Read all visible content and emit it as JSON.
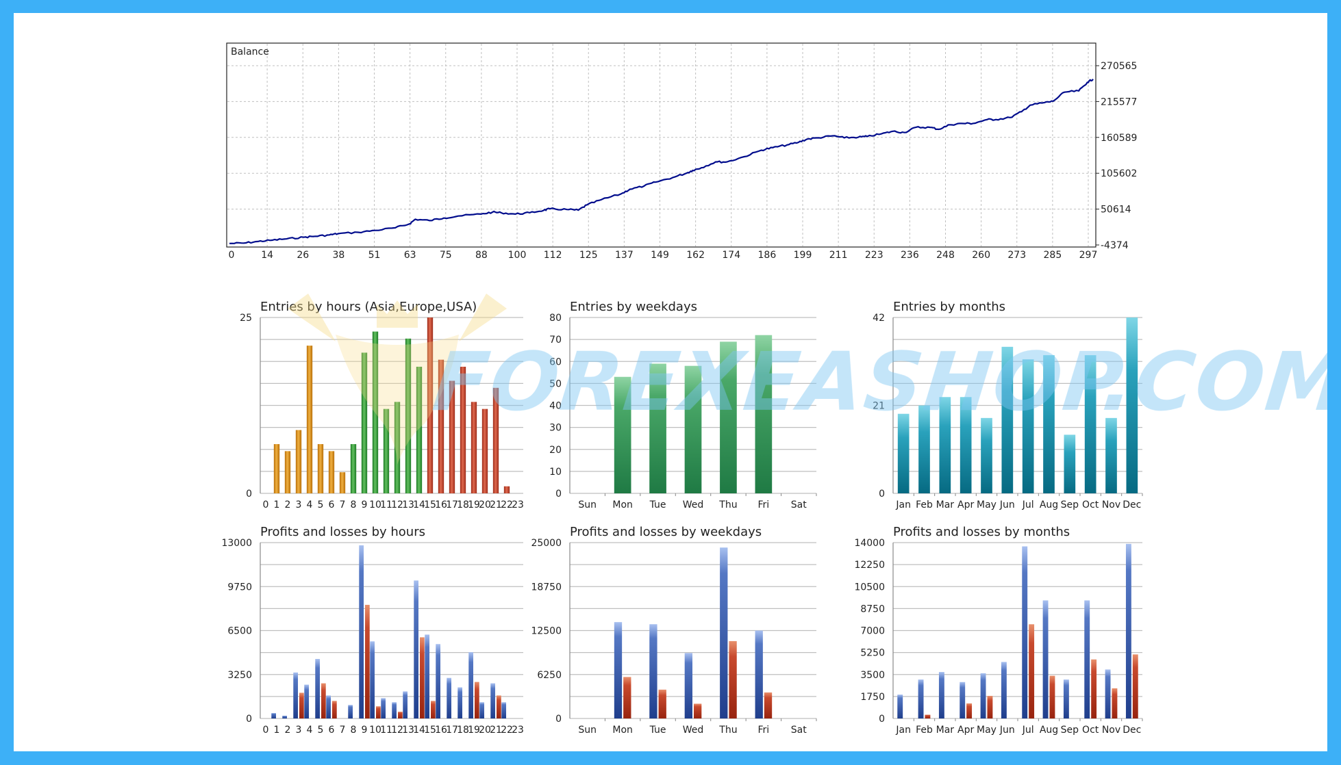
{
  "colors": {
    "frame": "#3db0f7",
    "balance_line": "#000c8c",
    "grid": "#bfbfbf",
    "asia": "#d68a16",
    "europe": "#2e9a3a",
    "usa": "#bf3b28",
    "weekday_green": "#2f9a5a",
    "month_teal": "#0e86a0",
    "profit_blue": "#2f58a8",
    "loss_red": "#bf3b28",
    "watermark": "#7ec8f4"
  },
  "watermark": {
    "text": "FOREXEASHOP.COM"
  },
  "chart_data": [
    {
      "id": "balance",
      "type": "line",
      "title": "Balance",
      "x_ticks": [
        "0",
        "14",
        "26",
        "38",
        "51",
        "63",
        "75",
        "88",
        "100",
        "112",
        "125",
        "137",
        "149",
        "162",
        "174",
        "186",
        "199",
        "211",
        "223",
        "236",
        "248",
        "260",
        "273",
        "285",
        "297"
      ],
      "y_ticks": [
        "270565",
        "215577",
        "160589",
        "105602",
        "50614",
        "-4374"
      ],
      "xlim": [
        0,
        302
      ],
      "ylim": [
        -4374,
        270565
      ],
      "grid": true,
      "series": [
        {
          "x": [
            0,
            5,
            10,
            15,
            20,
            26,
            30,
            35,
            38,
            45,
            51,
            58,
            63,
            65,
            70,
            75,
            80,
            88,
            92,
            95,
            100,
            105,
            110,
            112,
            118,
            122,
            125,
            130,
            137,
            140,
            145,
            149,
            155,
            160,
            162,
            165,
            170,
            174,
            180,
            186,
            190,
            195,
            199,
            202,
            206,
            211,
            215,
            220,
            223,
            228,
            232,
            236,
            240,
            245,
            248,
            252,
            256,
            260,
            265,
            268,
            273,
            277,
            280,
            285,
            288,
            292,
            297,
            300,
            302
          ],
          "y": [
            -2100,
            -1500,
            1000,
            3000,
            5000,
            7500,
            9000,
            11000,
            13000,
            15000,
            18000,
            22000,
            28000,
            35000,
            33000,
            37000,
            40000,
            43000,
            46000,
            45000,
            43000,
            45000,
            49000,
            51000,
            50000,
            49000,
            57000,
            65000,
            74000,
            81000,
            86000,
            92000,
            99000,
            106000,
            110000,
            114000,
            123000,
            123000,
            131000,
            141000,
            145000,
            149000,
            153000,
            158000,
            160000,
            163000,
            160000,
            161000,
            162000,
            166000,
            170000,
            168000,
            176000,
            176000,
            173000,
            180000,
            182000,
            182000,
            188000,
            188000,
            191000,
            200000,
            210000,
            214000,
            216000,
            230000,
            232000,
            245000,
            250000
          ]
        }
      ]
    },
    {
      "id": "entries_hours",
      "type": "bar",
      "title": "Entries by hours (Asia,Europe,USA)",
      "categories": [
        "0",
        "1",
        "2",
        "3",
        "4",
        "5",
        "6",
        "7",
        "8",
        "9",
        "10",
        "11",
        "12",
        "13",
        "14",
        "15",
        "16",
        "17",
        "18",
        "19",
        "20",
        "21",
        "22",
        "23"
      ],
      "values": [
        0,
        7,
        6,
        9,
        21,
        7,
        6,
        3,
        7,
        20,
        23,
        12,
        13,
        22,
        18,
        25,
        19,
        16,
        18,
        13,
        12,
        15,
        1,
        0
      ],
      "groups": [
        "asia",
        "asia",
        "asia",
        "asia",
        "asia",
        "asia",
        "asia",
        "asia",
        "europe",
        "europe",
        "europe",
        "europe",
        "europe",
        "europe",
        "europe",
        "usa",
        "usa",
        "usa",
        "usa",
        "usa",
        "usa",
        "usa",
        "usa",
        "usa"
      ],
      "y_ticks": [
        "25",
        "0"
      ],
      "ylim": [
        0,
        25
      ],
      "grid_lines": 8
    },
    {
      "id": "entries_weekdays",
      "type": "bar",
      "title": "Entries by weekdays",
      "categories": [
        "Sun",
        "Mon",
        "Tue",
        "Wed",
        "Thu",
        "Fri",
        "Sat"
      ],
      "values": [
        0,
        53,
        59,
        58,
        69,
        72,
        0
      ],
      "y_ticks": [
        "80",
        "70",
        "60",
        "50",
        "40",
        "30",
        "20",
        "10",
        "0"
      ],
      "ylim": [
        0,
        80
      ],
      "grid_lines": 8
    },
    {
      "id": "entries_months",
      "type": "bar",
      "title": "Entries by months",
      "categories": [
        "Jan",
        "Feb",
        "Mar",
        "Apr",
        "May",
        "Jun",
        "Jul",
        "Aug",
        "Sep",
        "Oct",
        "Nov",
        "Dec"
      ],
      "values": [
        19,
        21,
        23,
        23,
        18,
        35,
        32,
        33,
        14,
        33,
        18,
        42
      ],
      "y_ticks": [
        "42",
        "21",
        "0"
      ],
      "ylim": [
        0,
        42
      ],
      "grid_lines": 8
    },
    {
      "id": "pl_hours",
      "type": "bar",
      "title": "Profits and losses by hours",
      "categories": [
        "0",
        "1",
        "2",
        "3",
        "4",
        "5",
        "6",
        "7",
        "8",
        "9",
        "10",
        "11",
        "12",
        "13",
        "14",
        "15",
        "16",
        "17",
        "18",
        "19",
        "20",
        "21",
        "22",
        "23"
      ],
      "series": [
        {
          "name": "profit",
          "values": [
            0,
            400,
            200,
            3400,
            2500,
            4400,
            1700,
            0,
            1000,
            12800,
            5700,
            1500,
            1200,
            2000,
            10200,
            6200,
            5500,
            3000,
            2300,
            4900,
            1200,
            2600,
            1200,
            0
          ]
        },
        {
          "name": "loss",
          "values": [
            0,
            0,
            0,
            1900,
            0,
            2600,
            1300,
            0,
            0,
            8400,
            900,
            0,
            500,
            0,
            6000,
            1300,
            0,
            0,
            0,
            2700,
            0,
            1700,
            0,
            0
          ]
        }
      ],
      "y_ticks": [
        "13000",
        "9750",
        "6500",
        "3250",
        "0"
      ],
      "ylim": [
        0,
        13000
      ],
      "grid_lines": 8
    },
    {
      "id": "pl_weekdays",
      "type": "bar",
      "title": "Profits and losses by weekdays",
      "categories": [
        "Sun",
        "Mon",
        "Tue",
        "Wed",
        "Thu",
        "Fri",
        "Sat"
      ],
      "series": [
        {
          "name": "profit",
          "values": [
            0,
            13700,
            13400,
            9300,
            24300,
            12500,
            0
          ]
        },
        {
          "name": "loss",
          "values": [
            0,
            5900,
            4100,
            2100,
            11000,
            3700,
            0
          ]
        }
      ],
      "y_ticks": [
        "25000",
        "18750",
        "12500",
        "6250",
        "0"
      ],
      "ylim": [
        0,
        25000
      ],
      "grid_lines": 8
    },
    {
      "id": "pl_months",
      "type": "bar",
      "title": "Profits and losses by months",
      "categories": [
        "Jan",
        "Feb",
        "Mar",
        "Apr",
        "May",
        "Jun",
        "Jul",
        "Aug",
        "Sep",
        "Oct",
        "Nov",
        "Dec"
      ],
      "series": [
        {
          "name": "profit",
          "values": [
            1900,
            3100,
            3700,
            2900,
            3600,
            4500,
            13700,
            9400,
            3100,
            9400,
            3900,
            13900
          ]
        },
        {
          "name": "loss",
          "values": [
            0,
            300,
            0,
            1200,
            1800,
            0,
            7500,
            3400,
            0,
            4700,
            2400,
            5100
          ]
        }
      ],
      "y_ticks": [
        "14000",
        "12250",
        "10500",
        "8750",
        "7000",
        "5250",
        "3500",
        "1750",
        "0"
      ],
      "ylim": [
        0,
        14000
      ],
      "grid_lines": 8
    }
  ]
}
